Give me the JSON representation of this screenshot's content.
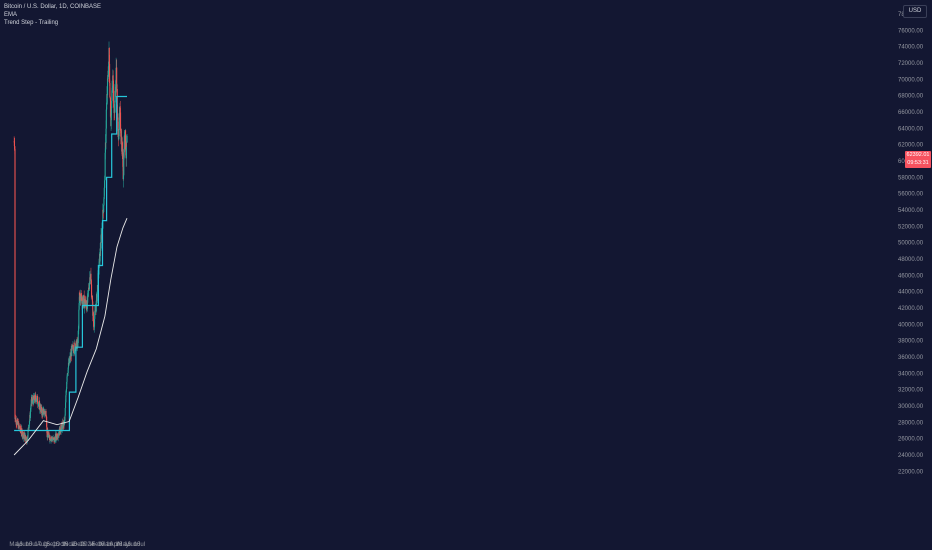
{
  "legend": {
    "symbol": "Bitcoin / U.S. Dollar, 1D, COINBASE",
    "ema": "EMA",
    "indicator": "Trend Step - Trailing"
  },
  "currency_button": "USD",
  "current_price": {
    "price": "62392.01",
    "countdown": "09:53:31"
  },
  "colors": {
    "background": "#131732",
    "up": "#26a69a",
    "down": "#ef5350",
    "trend_step": "#26c6da",
    "ema": "#e8e8e8",
    "price_label": "#f7525f"
  },
  "chart_data": {
    "type": "candlestick",
    "y_axis_ticks": [
      22000,
      24000,
      26000,
      28000,
      30000,
      32000,
      34000,
      36000,
      38000,
      40000,
      42000,
      44000,
      46000,
      48000,
      50000,
      52000,
      54000,
      56000,
      58000,
      60000,
      62000,
      64000,
      66000,
      68000,
      70000,
      72000,
      74000,
      76000,
      78000
    ],
    "y_range": [
      21000,
      79000
    ],
    "x_axis_ticks": [
      "May",
      "16",
      "Jun",
      "16",
      "Jul",
      "17",
      "Aug",
      "16",
      "Sep",
      "16",
      "Oct",
      "16",
      "Nov",
      "16",
      "Dec",
      "16",
      "2024",
      "16",
      "Feb",
      "16",
      "Mar",
      "16",
      "Apr",
      "16",
      "May",
      "16",
      "Jun",
      "16",
      "Jul"
    ],
    "price_checkpoints": [
      {
        "date": "2023-05-01",
        "close": 28500
      },
      {
        "date": "2023-05-20",
        "close": 27000
      },
      {
        "date": "2023-06-10",
        "close": 25800
      },
      {
        "date": "2023-06-20",
        "close": 28500
      },
      {
        "date": "2023-06-25",
        "close": 30500
      },
      {
        "date": "2023-07-13",
        "close": 31000
      },
      {
        "date": "2023-07-30",
        "close": 29300
      },
      {
        "date": "2023-08-15",
        "close": 29200
      },
      {
        "date": "2023-08-17",
        "close": 26500
      },
      {
        "date": "2023-09-10",
        "close": 25800
      },
      {
        "date": "2023-09-30",
        "close": 27000
      },
      {
        "date": "2023-10-16",
        "close": 28000
      },
      {
        "date": "2023-10-24",
        "close": 34000
      },
      {
        "date": "2023-11-09",
        "close": 36800
      },
      {
        "date": "2023-11-30",
        "close": 37700
      },
      {
        "date": "2023-12-05",
        "close": 43500
      },
      {
        "date": "2023-12-31",
        "close": 42300
      },
      {
        "date": "2024-01-11",
        "close": 46500
      },
      {
        "date": "2024-01-22",
        "close": 39800
      },
      {
        "date": "2024-01-31",
        "close": 42500
      },
      {
        "date": "2024-02-09",
        "close": 47000
      },
      {
        "date": "2024-02-20",
        "close": 52000
      },
      {
        "date": "2024-02-28",
        "close": 57000
      },
      {
        "date": "2024-03-05",
        "close": 66000
      },
      {
        "date": "2024-03-14",
        "close": 73000
      },
      {
        "date": "2024-03-20",
        "close": 65000
      },
      {
        "date": "2024-03-27",
        "close": 70000
      },
      {
        "date": "2024-04-01",
        "close": 66000
      },
      {
        "date": "2024-04-08",
        "close": 71500
      },
      {
        "date": "2024-04-13",
        "close": 63000
      },
      {
        "date": "2024-04-20",
        "close": 65500
      },
      {
        "date": "2024-04-30",
        "close": 60000
      },
      {
        "date": "2024-05-01",
        "close": 58000
      },
      {
        "date": "2024-05-06",
        "close": 64000
      },
      {
        "date": "2024-05-11",
        "close": 60800
      },
      {
        "date": "2024-05-14",
        "close": 62392
      }
    ],
    "trend_step": [
      {
        "from": "2023-04-28",
        "to": "2023-11-01",
        "value": 27000
      },
      {
        "from": "2023-11-01",
        "to": "2023-11-23",
        "value": 31700
      },
      {
        "from": "2023-11-23",
        "to": "2023-12-15",
        "value": 37200
      },
      {
        "from": "2023-12-15",
        "to": "2024-02-07",
        "value": 42300
      },
      {
        "from": "2024-02-07",
        "to": "2024-02-21",
        "value": 47200
      },
      {
        "from": "2024-02-21",
        "to": "2024-03-06",
        "value": 52700
      },
      {
        "from": "2024-03-06",
        "to": "2024-03-23",
        "value": 58000
      },
      {
        "from": "2024-03-23",
        "to": "2024-04-09",
        "value": 63300
      },
      {
        "from": "2024-04-09",
        "to": "2024-05-14",
        "value": 67900
      }
    ],
    "ema": [
      {
        "date": "2023-04-28",
        "value": 24000
      },
      {
        "date": "2023-06-15",
        "value": 25800
      },
      {
        "date": "2023-08-05",
        "value": 28200
      },
      {
        "date": "2023-09-20",
        "value": 27700
      },
      {
        "date": "2023-10-31",
        "value": 28100
      },
      {
        "date": "2023-11-30",
        "value": 31000
      },
      {
        "date": "2023-12-31",
        "value": 34200
      },
      {
        "date": "2024-01-31",
        "value": 37000
      },
      {
        "date": "2024-02-29",
        "value": 41000
      },
      {
        "date": "2024-03-20",
        "value": 45500
      },
      {
        "date": "2024-04-10",
        "value": 49500
      },
      {
        "date": "2024-04-30",
        "value": 51800
      },
      {
        "date": "2024-05-14",
        "value": 53000
      }
    ]
  }
}
